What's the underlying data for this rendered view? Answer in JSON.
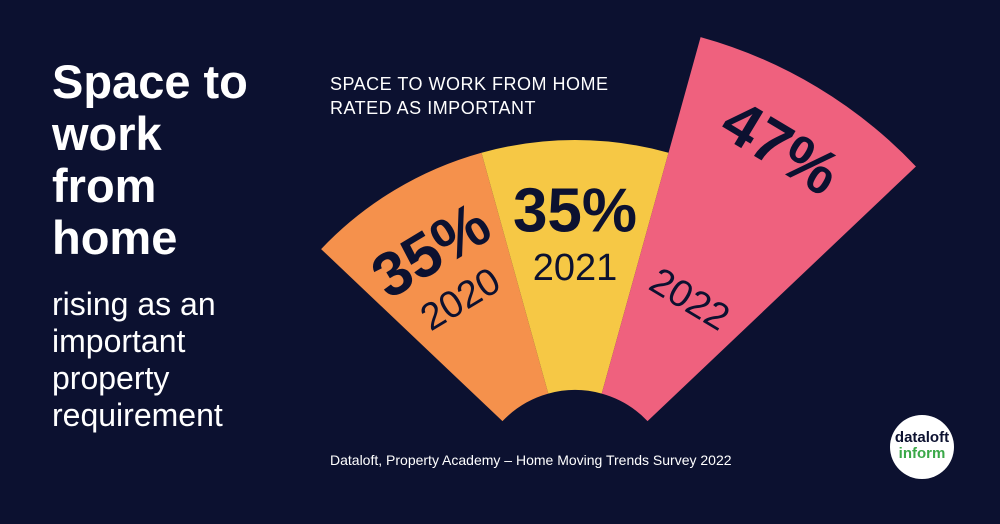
{
  "chart_data": {
    "type": "radial-bar",
    "title": "Space to work from home",
    "subtitle": "rising as an important property requirement",
    "heading": "SPACE TO WORK FROM HOME RATED AS IMPORTANT",
    "source": "Dataloft, Property Academy – Home Moving Trends Survey 2022",
    "categories": [
      "2020",
      "2021",
      "2022"
    ],
    "values": [
      35,
      35,
      47
    ],
    "value_labels": [
      "35%",
      "35%",
      "47%"
    ],
    "colors": [
      "#f5914c",
      "#f6c845",
      "#ef617e"
    ]
  },
  "logo": {
    "line1": "dataloft",
    "line2": "inform"
  }
}
